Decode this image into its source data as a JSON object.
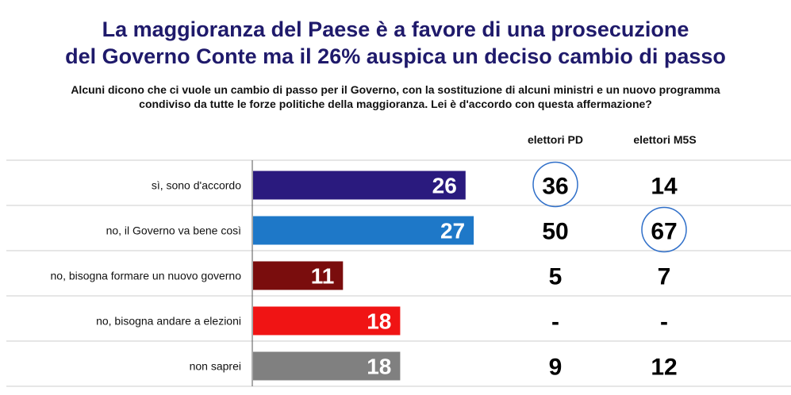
{
  "title_line1": "La maggioranza del Paese è a favore di una prosecuzione",
  "title_line2": "del Governo Conte ma il 26% auspica un deciso cambio di passo",
  "subtitle_line1": "Alcuni dicono che ci vuole un cambio di passo per il Governo, con la sostituzione di alcuni ministri e un nuovo programma",
  "subtitle_line2": "condiviso da tutte le forze politiche della maggioranza. Lei è d'accordo con questa affermazione?",
  "colors": {
    "title": "#1f1a6b",
    "circle": "#2f6fc9"
  },
  "chart_data": {
    "type": "bar",
    "orientation": "horizontal",
    "categories": [
      "sì, sono d'accordo",
      "no, il Governo va bene così",
      "no, bisogna formare un nuovo governo",
      "no, bisogna andare a elezioni",
      "non saprei"
    ],
    "values": [
      26,
      27,
      11,
      18,
      18
    ],
    "value_labels": [
      "26",
      "27",
      "11",
      "18",
      "18"
    ],
    "bar_colors": [
      "#2a1a7e",
      "#1e78c8",
      "#7a0d0d",
      "#f01414",
      "#808080"
    ],
    "xlim": [
      0,
      100
    ],
    "table": {
      "columns": [
        "elettori PD",
        "elettori M5S"
      ],
      "rows": [
        [
          "36",
          "14"
        ],
        [
          "50",
          "67"
        ],
        [
          "5",
          "7"
        ],
        [
          "-",
          "-"
        ],
        [
          "9",
          "12"
        ]
      ],
      "circled": [
        [
          0,
          0
        ],
        [
          1,
          1
        ]
      ]
    }
  }
}
